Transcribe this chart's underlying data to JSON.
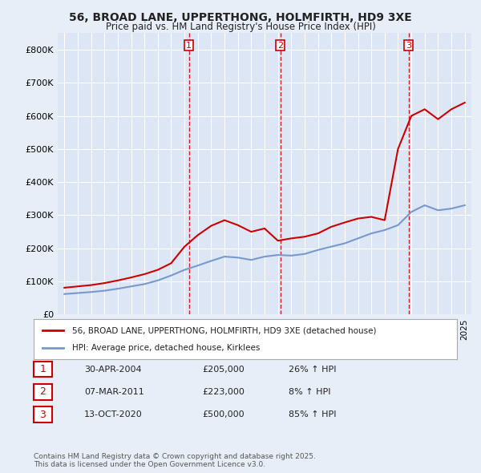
{
  "title": "56, BROAD LANE, UPPERTHONG, HOLMFIRTH, HD9 3XE",
  "subtitle": "Price paid vs. HM Land Registry's House Price Index (HPI)",
  "background_color": "#e8eef8",
  "plot_bg_color": "#dce6f5",
  "grid_color": "#ffffff",
  "ylim": [
    0,
    850000
  ],
  "yticks": [
    0,
    100000,
    200000,
    300000,
    400000,
    500000,
    600000,
    700000,
    800000
  ],
  "ytick_labels": [
    "£0",
    "£100K",
    "£200K",
    "£300K",
    "£400K",
    "£500K",
    "£600K",
    "£700K",
    "£800K"
  ],
  "sale_dates": [
    2004.33,
    2011.18,
    2020.79
  ],
  "sale_prices": [
    205000,
    223000,
    500000
  ],
  "sale_labels": [
    "1",
    "2",
    "3"
  ],
  "sale_label_color": "#cc0000",
  "sale_vline_color": "#cc0000",
  "legend_entries": [
    "56, BROAD LANE, UPPERTHONG, HOLMFIRTH, HD9 3XE (detached house)",
    "HPI: Average price, detached house, Kirklees"
  ],
  "legend_line_colors": [
    "#cc0000",
    "#7799cc"
  ],
  "footer_text": "Contains HM Land Registry data © Crown copyright and database right 2025.\nThis data is licensed under the Open Government Licence v3.0.",
  "table_rows": [
    [
      "1",
      "30-APR-2004",
      "£205,000",
      "26% ↑ HPI"
    ],
    [
      "2",
      "07-MAR-2011",
      "£223,000",
      "8% ↑ HPI"
    ],
    [
      "3",
      "13-OCT-2020",
      "£500,000",
      "85% ↑ HPI"
    ]
  ],
  "hpi_line_color": "#7799cc",
  "price_line_color": "#cc0000",
  "hpi_years": [
    1995,
    1996,
    1997,
    1998,
    1999,
    2000,
    2001,
    2002,
    2003,
    2004,
    2005,
    2006,
    2007,
    2008,
    2009,
    2010,
    2011,
    2012,
    2013,
    2014,
    2015,
    2016,
    2017,
    2018,
    2019,
    2020,
    2021,
    2022,
    2023,
    2024,
    2025
  ],
  "hpi_values": [
    62000,
    65000,
    68000,
    72000,
    78000,
    85000,
    92000,
    103000,
    118000,
    135000,
    148000,
    162000,
    175000,
    172000,
    165000,
    175000,
    180000,
    178000,
    183000,
    195000,
    205000,
    215000,
    230000,
    245000,
    255000,
    270000,
    310000,
    330000,
    315000,
    320000,
    330000
  ],
  "price_years": [
    1995,
    1996,
    1997,
    1998,
    1999,
    2000,
    2001,
    2002,
    2003,
    2004,
    2005,
    2006,
    2007,
    2008,
    2009,
    2010,
    2011,
    2012,
    2013,
    2014,
    2015,
    2016,
    2017,
    2018,
    2019,
    2020,
    2021,
    2022,
    2023,
    2024,
    2025
  ],
  "price_values": [
    81000,
    85000,
    89000,
    95000,
    103000,
    112000,
    122000,
    135000,
    155000,
    205000,
    240000,
    268000,
    285000,
    270000,
    250000,
    260000,
    223000,
    230000,
    235000,
    245000,
    265000,
    278000,
    290000,
    295000,
    285000,
    500000,
    600000,
    620000,
    590000,
    620000,
    640000
  ],
  "xlim_start": 1994.5,
  "xlim_end": 2025.5
}
